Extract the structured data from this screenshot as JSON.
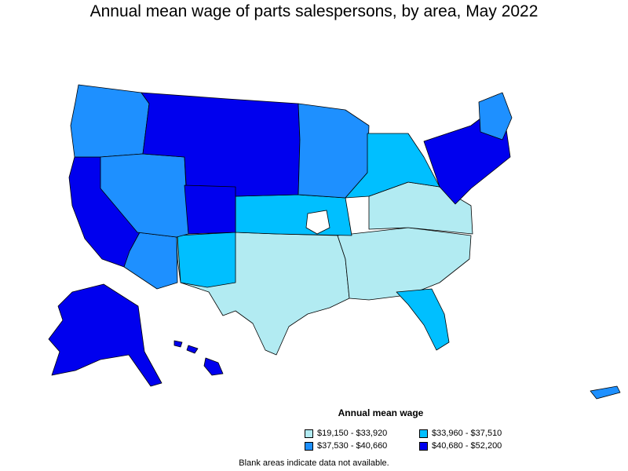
{
  "title": "Annual mean wage of parts salespersons, by area, May 2022",
  "legend": {
    "title": "Annual mean wage",
    "items": [
      {
        "label": "$19,150 - $33,920",
        "color": "#b2ebf2"
      },
      {
        "label": "$33,960 - $37,510",
        "color": "#00bfff"
      },
      {
        "label": "$37,530 - $40,660",
        "color": "#1e90ff"
      },
      {
        "label": "$40,680 - $52,200",
        "color": "#0000ee"
      }
    ]
  },
  "note": "Blank areas indicate data not available."
}
